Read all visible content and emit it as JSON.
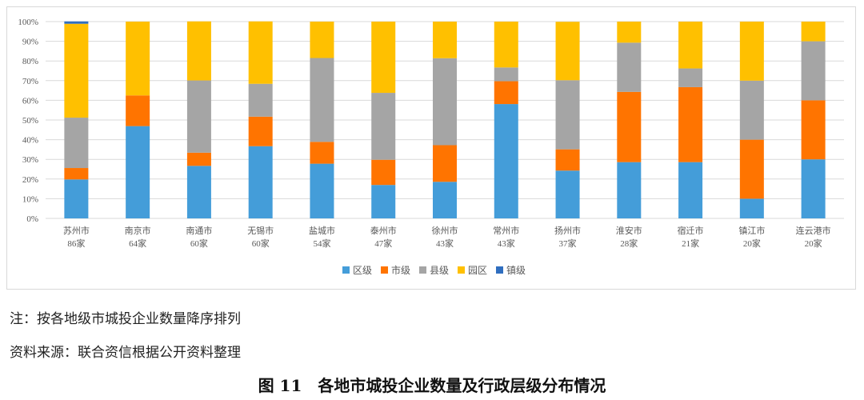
{
  "chart_data": {
    "type": "bar",
    "stacked": true,
    "percent": true,
    "categories": [
      "苏州市",
      "南京市",
      "南通市",
      "无锡市",
      "盐城市",
      "泰州市",
      "徐州市",
      "常州市",
      "扬州市",
      "淮安市",
      "宿迁市",
      "镇江市",
      "连云港市"
    ],
    "category_counts": [
      "86家",
      "64家",
      "60家",
      "60家",
      "54家",
      "47家",
      "43家",
      "43家",
      "37家",
      "28家",
      "21家",
      "20家",
      "20家"
    ],
    "series": [
      {
        "name": "区级",
        "color": "#449DD9",
        "values": [
          19.8,
          46.9,
          26.7,
          36.7,
          27.8,
          17.0,
          18.6,
          58.1,
          24.3,
          28.6,
          28.6,
          10,
          30
        ]
      },
      {
        "name": "市级",
        "color": "#FF7400",
        "values": [
          5.8,
          15.6,
          6.7,
          15.0,
          11.1,
          12.8,
          18.6,
          11.6,
          10.8,
          35.7,
          38.1,
          30,
          30
        ]
      },
      {
        "name": "县级",
        "color": "#A5A5A5",
        "values": [
          25.6,
          0,
          36.7,
          16.7,
          42.6,
          34.0,
          44.2,
          7.0,
          35.1,
          25.0,
          9.5,
          30,
          30
        ]
      },
      {
        "name": "园区",
        "color": "#FFC000",
        "values": [
          47.7,
          37.5,
          30.0,
          31.7,
          18.5,
          36.2,
          18.6,
          23.3,
          29.7,
          10.7,
          23.8,
          30,
          10
        ]
      },
      {
        "name": "镇级",
        "color": "#2F6EBF",
        "values": [
          1.2,
          0,
          0,
          0,
          0,
          0,
          0,
          0,
          0,
          0,
          0,
          0,
          0
        ]
      }
    ],
    "yticks": [
      "0%",
      "10%",
      "20%",
      "30%",
      "40%",
      "50%",
      "60%",
      "70%",
      "80%",
      "90%",
      "100%"
    ],
    "ylim": [
      0,
      100
    ],
    "grid": true,
    "legend_position": "bottom"
  },
  "notes": [
    "注：按各地级市城投企业数量降序排列",
    "资料来源：联合资信根据公开资料整理"
  ],
  "caption": "图 11　各地市城投企业数量及行政层级分布情况"
}
